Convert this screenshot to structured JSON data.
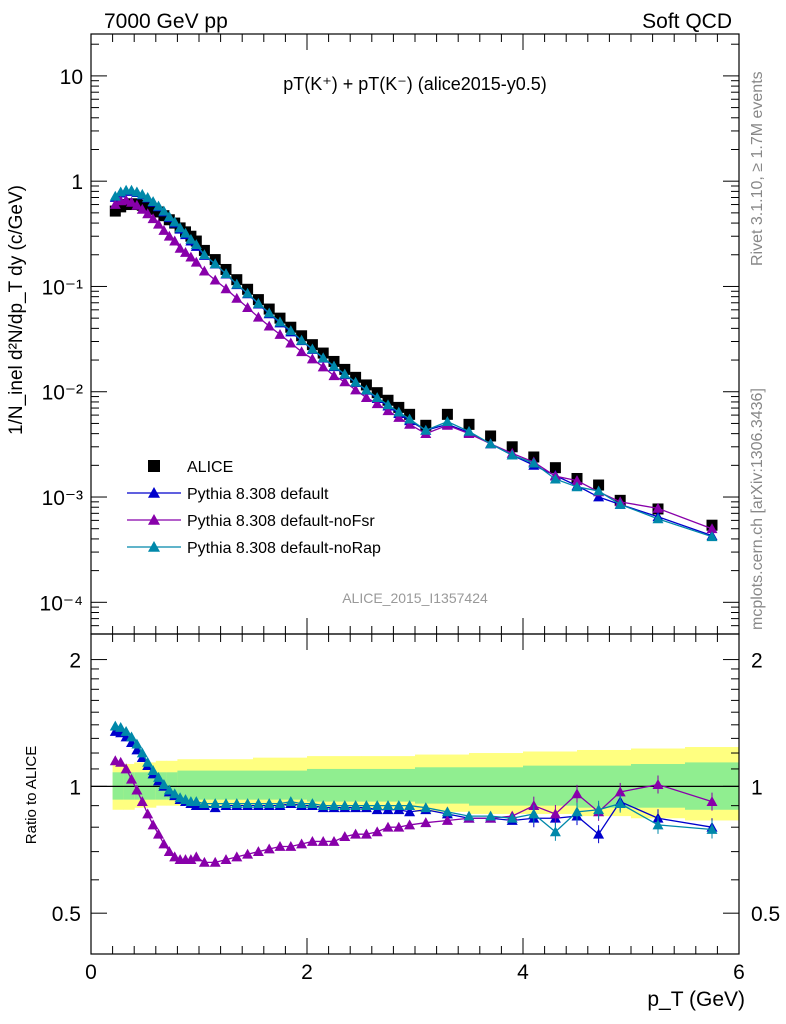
{
  "header": {
    "left": "7000 GeV pp",
    "right": "Soft QCD"
  },
  "side_labels": {
    "rivet": "Rivet 3.1.10, ≥ 1.7M events",
    "mcplots": "mcplots.cern.ch [arXiv:1306.3436]"
  },
  "chart_data": [
    {
      "type": "scatter",
      "panel": "main",
      "title": "pT(K⁺) + pT(K⁻) (alice2015-y0.5)",
      "watermark": "ALICE_2015_I1357424",
      "ylabel": "1/N_inel d²N/dp_T dy (c/GeV)",
      "yscale": "log",
      "xlim": [
        0,
        6
      ],
      "ylim": [
        5e-05,
        25
      ],
      "legend_position": "lower-left",
      "x_ticks": [
        "0",
        "2",
        "4",
        "6"
      ],
      "y_ticks": [
        "10⁻⁴",
        "10⁻³",
        "10⁻²",
        "10⁻¹",
        "1",
        "10"
      ],
      "x": [
        0.225,
        0.275,
        0.325,
        0.375,
        0.425,
        0.475,
        0.525,
        0.575,
        0.625,
        0.675,
        0.725,
        0.775,
        0.825,
        0.875,
        0.925,
        0.975,
        1.05,
        1.15,
        1.25,
        1.35,
        1.45,
        1.55,
        1.65,
        1.75,
        1.85,
        1.95,
        2.05,
        2.15,
        2.25,
        2.35,
        2.45,
        2.55,
        2.65,
        2.75,
        2.85,
        2.95,
        3.1,
        3.3,
        3.5,
        3.7,
        3.9,
        4.1,
        4.3,
        4.5,
        4.7,
        4.9,
        5.25,
        5.75
      ],
      "series": [
        {
          "name": "ALICE",
          "marker": "square",
          "color": "#000000",
          "values": [
            0.52,
            0.57,
            0.6,
            0.61,
            0.6,
            0.59,
            0.57,
            0.54,
            0.51,
            0.47,
            0.43,
            0.4,
            0.36,
            0.33,
            0.3,
            0.27,
            0.22,
            0.18,
            0.145,
            0.116,
            0.094,
            0.075,
            0.061,
            0.05,
            0.041,
            0.034,
            0.028,
            0.0233,
            0.0194,
            0.0163,
            0.0137,
            0.0116,
            0.0098,
            0.0083,
            0.0071,
            0.0061,
            0.0048,
            0.0061,
            0.0049,
            0.0038,
            0.003,
            0.0024,
            0.0019,
            0.0015,
            0.0013,
            0.00093,
            0.00077,
            0.00054
          ]
        },
        {
          "name": "Pythia 8.308 default",
          "marker": "triangle",
          "color": "#0000cc",
          "values": [
            0.7,
            0.77,
            0.8,
            0.8,
            0.78,
            0.74,
            0.69,
            0.63,
            0.57,
            0.51,
            0.45,
            0.4,
            0.35,
            0.31,
            0.27,
            0.24,
            0.197,
            0.163,
            0.131,
            0.104,
            0.085,
            0.068,
            0.055,
            0.045,
            0.037,
            0.0305,
            0.0252,
            0.0208,
            0.0173,
            0.0145,
            0.0122,
            0.0103,
            0.0086,
            0.0073,
            0.0062,
            0.0053,
            0.0043,
            0.0049,
            0.0041,
            0.0032,
            0.0025,
            0.002,
            0.0016,
            0.00128,
            0.001,
            0.00085,
            0.00065,
            0.00043
          ]
        },
        {
          "name": "Pythia 8.308 default-noFsr",
          "marker": "triangle",
          "color": "#8800aa",
          "values": [
            0.6,
            0.65,
            0.66,
            0.63,
            0.59,
            0.54,
            0.49,
            0.44,
            0.39,
            0.34,
            0.3,
            0.27,
            0.23,
            0.21,
            0.19,
            0.17,
            0.14,
            0.115,
            0.095,
            0.077,
            0.063,
            0.051,
            0.042,
            0.035,
            0.029,
            0.024,
            0.0205,
            0.0172,
            0.0142,
            0.0124,
            0.0104,
            0.0088,
            0.0077,
            0.0066,
            0.0057,
            0.0049,
            0.004,
            0.0048,
            0.004,
            0.0032,
            0.0026,
            0.00215,
            0.00158,
            0.00143,
            0.00112,
            0.0009,
            0.00078,
            0.0005
          ]
        },
        {
          "name": "Pythia 8.308 default-noRap",
          "marker": "triangle",
          "color": "#0088aa",
          "values": [
            0.72,
            0.79,
            0.82,
            0.82,
            0.79,
            0.75,
            0.7,
            0.64,
            0.58,
            0.52,
            0.46,
            0.41,
            0.36,
            0.32,
            0.28,
            0.25,
            0.2,
            0.164,
            0.132,
            0.105,
            0.086,
            0.069,
            0.056,
            0.046,
            0.038,
            0.0308,
            0.0255,
            0.021,
            0.0175,
            0.0147,
            0.0123,
            0.0104,
            0.0088,
            0.0075,
            0.0064,
            0.0055,
            0.0043,
            0.0052,
            0.0042,
            0.0032,
            0.0025,
            0.0021,
            0.00148,
            0.00125,
            0.00114,
            0.00085,
            0.00062,
            0.00042
          ]
        }
      ]
    },
    {
      "type": "scatter",
      "panel": "ratio",
      "xlabel": "p_T (GeV)",
      "ylabel": "Ratio to ALICE",
      "yscale": "log",
      "xlim": [
        0,
        6
      ],
      "ylim": [
        0.4,
        2.3
      ],
      "reference_line": 1,
      "x_ticks": [
        "0",
        "2",
        "4",
        "6"
      ],
      "y_ticks": [
        "0.5",
        "1",
        "2"
      ],
      "bands": {
        "stat_color": "#90ee90",
        "syst_color": "#ffff80",
        "x_edges": [
          0.2,
          0.3,
          0.4,
          0.5,
          0.6,
          0.7,
          0.8,
          1.0,
          1.5,
          2.0,
          2.5,
          3.0,
          3.5,
          4.0,
          4.5,
          5.0,
          5.5,
          6.0
        ],
        "inner_lo": [
          0.93,
          0.93,
          0.93,
          0.93,
          0.93,
          0.93,
          0.93,
          0.93,
          0.93,
          0.92,
          0.92,
          0.91,
          0.9,
          0.9,
          0.89,
          0.89,
          0.88
        ],
        "inner_hi": [
          1.08,
          1.08,
          1.08,
          1.08,
          1.08,
          1.08,
          1.09,
          1.09,
          1.09,
          1.1,
          1.1,
          1.11,
          1.11,
          1.12,
          1.12,
          1.13,
          1.14
        ],
        "outer_lo": [
          0.88,
          0.88,
          0.89,
          0.89,
          0.9,
          0.9,
          0.9,
          0.9,
          0.9,
          0.89,
          0.88,
          0.87,
          0.86,
          0.86,
          0.85,
          0.84,
          0.83
        ],
        "outer_hi": [
          1.13,
          1.13,
          1.14,
          1.14,
          1.15,
          1.15,
          1.16,
          1.16,
          1.17,
          1.18,
          1.18,
          1.19,
          1.2,
          1.21,
          1.22,
          1.23,
          1.24
        ]
      },
      "series": [
        {
          "name": "Pythia 8.308 default",
          "color": "#0000cc",
          "values": [
            1.35,
            1.34,
            1.31,
            1.27,
            1.22,
            1.17,
            1.12,
            1.07,
            1.03,
            1.0,
            0.97,
            0.95,
            0.93,
            0.92,
            0.91,
            0.9,
            0.9,
            0.89,
            0.9,
            0.9,
            0.9,
            0.9,
            0.9,
            0.9,
            0.91,
            0.9,
            0.9,
            0.89,
            0.89,
            0.89,
            0.89,
            0.89,
            0.88,
            0.88,
            0.88,
            0.87,
            0.88,
            0.86,
            0.84,
            0.84,
            0.83,
            0.84,
            0.84,
            0.85,
            0.77,
            0.92,
            0.84,
            0.8
          ]
        },
        {
          "name": "Pythia 8.308 default-noFsr",
          "color": "#8800aa",
          "values": [
            1.15,
            1.14,
            1.1,
            1.04,
            0.98,
            0.92,
            0.86,
            0.81,
            0.77,
            0.73,
            0.7,
            0.68,
            0.67,
            0.67,
            0.67,
            0.68,
            0.66,
            0.66,
            0.67,
            0.68,
            0.69,
            0.7,
            0.71,
            0.72,
            0.72,
            0.73,
            0.74,
            0.74,
            0.74,
            0.76,
            0.77,
            0.77,
            0.78,
            0.8,
            0.8,
            0.81,
            0.82,
            0.83,
            0.84,
            0.84,
            0.85,
            0.9,
            0.86,
            0.96,
            0.87,
            0.97,
            1.01,
            0.92
          ]
        },
        {
          "name": "Pythia 8.308 default-noRap",
          "color": "#0088aa",
          "values": [
            1.39,
            1.38,
            1.35,
            1.31,
            1.26,
            1.2,
            1.14,
            1.09,
            1.05,
            1.01,
            0.98,
            0.96,
            0.94,
            0.93,
            0.92,
            0.92,
            0.91,
            0.91,
            0.91,
            0.91,
            0.91,
            0.91,
            0.91,
            0.91,
            0.92,
            0.91,
            0.91,
            0.9,
            0.9,
            0.9,
            0.9,
            0.9,
            0.9,
            0.9,
            0.9,
            0.9,
            0.89,
            0.87,
            0.85,
            0.85,
            0.84,
            0.86,
            0.78,
            0.87,
            0.88,
            0.91,
            0.81,
            0.79
          ]
        }
      ]
    }
  ]
}
